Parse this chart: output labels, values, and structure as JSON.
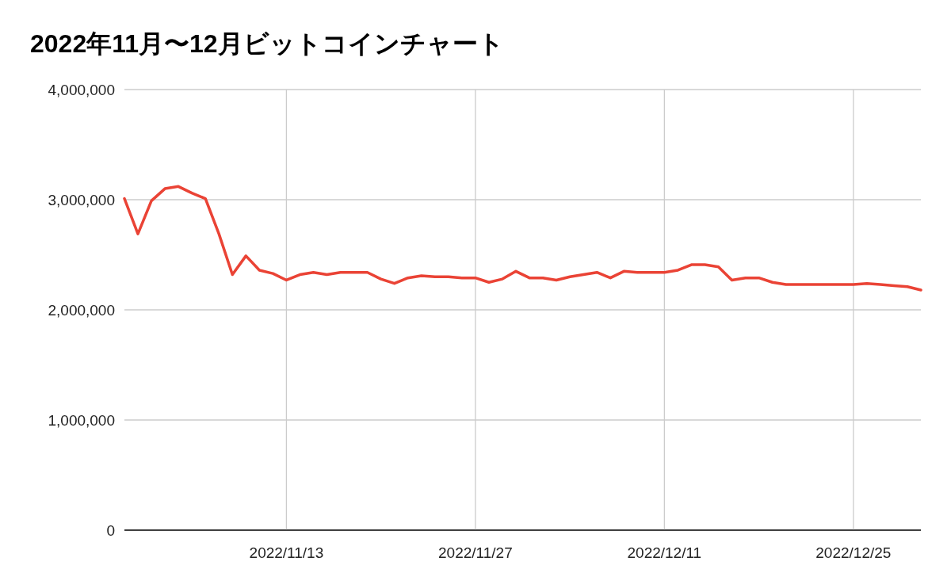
{
  "chart_data": {
    "type": "line",
    "title": "2022年11月〜12月ビットコインチャート",
    "x": [
      "2022-11-01",
      "2022-11-02",
      "2022-11-03",
      "2022-11-04",
      "2022-11-05",
      "2022-11-06",
      "2022-11-07",
      "2022-11-08",
      "2022-11-09",
      "2022-11-10",
      "2022-11-11",
      "2022-11-12",
      "2022-11-13",
      "2022-11-14",
      "2022-11-15",
      "2022-11-16",
      "2022-11-17",
      "2022-11-18",
      "2022-11-19",
      "2022-11-20",
      "2022-11-21",
      "2022-11-22",
      "2022-11-23",
      "2022-11-24",
      "2022-11-25",
      "2022-11-26",
      "2022-11-27",
      "2022-11-28",
      "2022-11-29",
      "2022-11-30",
      "2022-12-01",
      "2022-12-02",
      "2022-12-03",
      "2022-12-04",
      "2022-12-05",
      "2022-12-06",
      "2022-12-07",
      "2022-12-08",
      "2022-12-09",
      "2022-12-10",
      "2022-12-11",
      "2022-12-12",
      "2022-12-13",
      "2022-12-14",
      "2022-12-15",
      "2022-12-16",
      "2022-12-17",
      "2022-12-18",
      "2022-12-19",
      "2022-12-20",
      "2022-12-21",
      "2022-12-22",
      "2022-12-23",
      "2022-12-24",
      "2022-12-25",
      "2022-12-26",
      "2022-12-27",
      "2022-12-28",
      "2022-12-29",
      "2022-12-30"
    ],
    "series": [
      {
        "color": "#ea4335",
        "values": [
          3010000,
          2690000,
          2990000,
          3100000,
          3120000,
          3060000,
          3010000,
          2690000,
          2320000,
          2490000,
          2360000,
          2330000,
          2270000,
          2320000,
          2340000,
          2320000,
          2340000,
          2340000,
          2340000,
          2280000,
          2240000,
          2290000,
          2310000,
          2300000,
          2300000,
          2290000,
          2290000,
          2250000,
          2280000,
          2350000,
          2290000,
          2290000,
          2270000,
          2300000,
          2320000,
          2340000,
          2290000,
          2350000,
          2340000,
          2340000,
          2340000,
          2360000,
          2410000,
          2410000,
          2390000,
          2270000,
          2290000,
          2290000,
          2250000,
          2230000,
          2230000,
          2230000,
          2230000,
          2230000,
          2230000,
          2240000,
          2230000,
          2220000,
          2210000,
          2180000
        ]
      }
    ],
    "xlim": [
      "2022-11-01",
      "2022-12-30"
    ],
    "xticks": [
      {
        "value": "2022-11-13",
        "label": "2022/11/13"
      },
      {
        "value": "2022-11-27",
        "label": "2022/11/27"
      },
      {
        "value": "2022-12-11",
        "label": "2022/12/11"
      },
      {
        "value": "2022-12-25",
        "label": "2022/12/25"
      }
    ],
    "ylim": [
      0,
      4000000
    ],
    "yticks": [
      0,
      {
        "value": 1000000,
        "label": "1,000,000"
      },
      {
        "value": 2000000,
        "label": "2,000,000"
      },
      {
        "value": 3000000,
        "label": "3,000,000"
      },
      {
        "value": 4000000,
        "label": "4,000,000"
      }
    ],
    "grid": true,
    "line_style": "solid",
    "marker": "none"
  }
}
